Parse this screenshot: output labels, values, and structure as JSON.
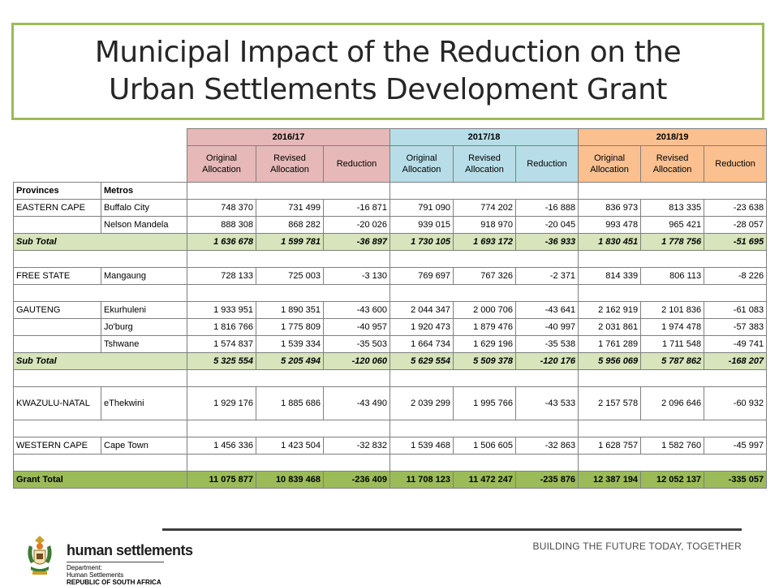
{
  "title": {
    "line1": "Municipal Impact of the Reduction on the",
    "line2": "Urban Settlements Development Grant"
  },
  "table": {
    "years": [
      "2016/17",
      "2017/18",
      "2018/19"
    ],
    "subheaders": [
      "Original Allocation",
      "Revised Allocation",
      "Reduction"
    ],
    "col_provinces": "Provinces",
    "col_metros": "Metros",
    "rows": [
      {
        "kind": "data",
        "province": "EASTERN CAPE",
        "metro": "Buffalo City",
        "values": [
          "748 370",
          "731 499",
          "-16 871",
          "791 090",
          "774 202",
          "-16 888",
          "836 973",
          "813 335",
          "-23 638"
        ]
      },
      {
        "kind": "data",
        "province": "",
        "metro": "Nelson Mandela",
        "values": [
          "888 308",
          "868 282",
          "-20 026",
          "939 015",
          "918 970",
          "-20 045",
          "993 478",
          "965 421",
          "-28 057"
        ]
      },
      {
        "kind": "sub",
        "label": "Sub Total",
        "values": [
          "1 636 678",
          "1 599 781",
          "-36 897",
          "1 730 105",
          "1 693 172",
          "-36 933",
          "1 830 451",
          "1 778 756",
          "-51 695"
        ]
      },
      {
        "kind": "blank"
      },
      {
        "kind": "data",
        "province": "FREE STATE",
        "metro": "Mangaung",
        "values": [
          "728 133",
          "725 003",
          "-3 130",
          "769 697",
          "767 326",
          "-2 371",
          "814 339",
          "806 113",
          "-8 226"
        ]
      },
      {
        "kind": "blank"
      },
      {
        "kind": "data",
        "province": "GAUTENG",
        "metro": "Ekurhuleni",
        "values": [
          "1 933 951",
          "1 890 351",
          "-43 600",
          "2 044 347",
          "2 000 706",
          "-43 641",
          "2 162 919",
          "2 101 836",
          "-61 083"
        ]
      },
      {
        "kind": "data",
        "province": "",
        "metro": "Jo'burg",
        "values": [
          "1 816 766",
          "1 775 809",
          "-40 957",
          "1 920 473",
          "1 879 476",
          "-40 997",
          "2 031 861",
          "1 974 478",
          "-57 383"
        ]
      },
      {
        "kind": "data",
        "province": "",
        "metro": "Tshwane",
        "values": [
          "1 574 837",
          "1 539 334",
          "-35 503",
          "1 664 734",
          "1 629 196",
          "-35 538",
          "1 761 289",
          "1 711 548",
          "-49 741"
        ]
      },
      {
        "kind": "sub",
        "label": "Sub Total",
        "values": [
          "5 325 554",
          "5 205 494",
          "-120 060",
          "5 629 554",
          "5 509 378",
          "-120 176",
          "5 956 069",
          "5 787 862",
          "-168 207"
        ]
      },
      {
        "kind": "blank"
      },
      {
        "kind": "data",
        "tall": true,
        "province": "KWAZULU-NATAL",
        "metro": "eThekwini",
        "values": [
          "1 929 176",
          "1 885 686",
          "-43 490",
          "2 039 299",
          "1 995 766",
          "-43 533",
          "2 157 578",
          "2 096 646",
          "-60 932"
        ]
      },
      {
        "kind": "blank"
      },
      {
        "kind": "data",
        "province": "WESTERN CAPE",
        "metro": "Cape Town",
        "values": [
          "1 456 336",
          "1 423 504",
          "-32 832",
          "1 539 468",
          "1 506 605",
          "-32 863",
          "1 628 757",
          "1 582 760",
          "-45 997"
        ]
      },
      {
        "kind": "blank"
      },
      {
        "kind": "grand",
        "label": "Grant Total",
        "values": [
          "11 075 877",
          "10 839 468",
          "-236 409",
          "11 708 123",
          "11 472 247",
          "-235 876",
          "12 387 194",
          "12 052 137",
          "-335 057"
        ]
      }
    ]
  },
  "footer": {
    "department_name": "human settlements",
    "dept_line1": "Department:",
    "dept_line2": "Human Settlements",
    "dept_line3": "REPUBLIC OF SOUTH AFRICA",
    "tagline": "BUILDING THE FUTURE TODAY, TOGETHER",
    "logo_icon": "coat-of-arms-icon"
  }
}
